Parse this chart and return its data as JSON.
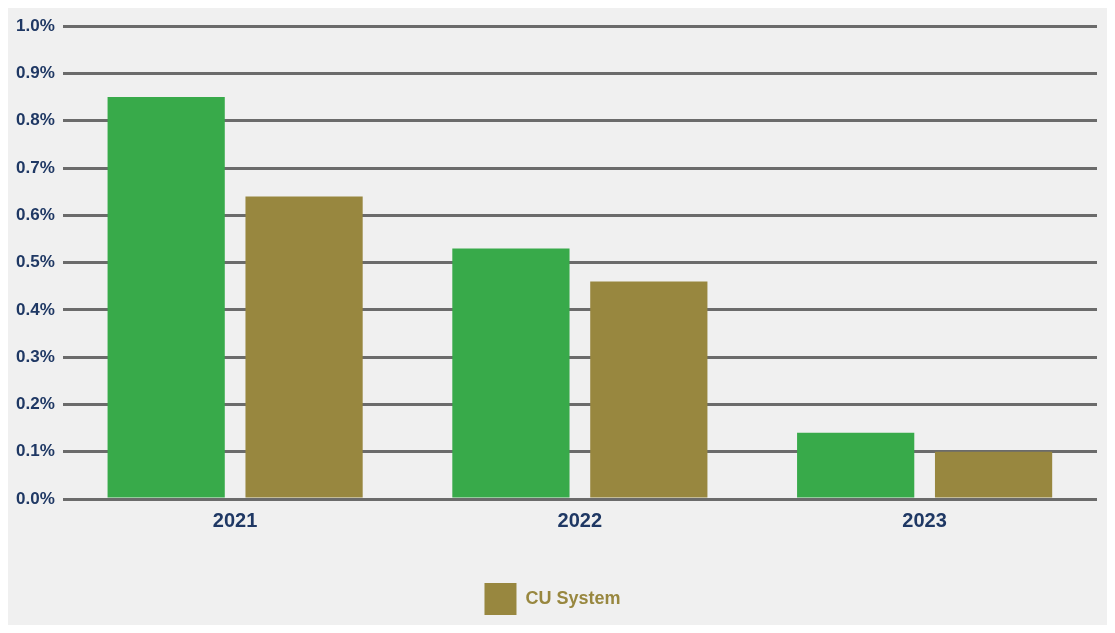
{
  "chart_data": {
    "type": "bar",
    "categories": [
      "2021",
      "2022",
      "2023"
    ],
    "series": [
      {
        "color": "#38aa4a",
        "values": [
          0.85,
          0.53,
          0.14
        ]
      },
      {
        "name": "CU System",
        "color": "#98873f",
        "values": [
          0.64,
          0.46,
          0.1
        ]
      }
    ],
    "ylim": [
      0,
      1
    ],
    "yticks": [
      {
        "value": 0,
        "label": "0.0%"
      },
      {
        "value": 0.1,
        "label": "0.1%"
      },
      {
        "value": 0.2,
        "label": "0.2%"
      },
      {
        "value": 0.3,
        "label": "0.3%"
      },
      {
        "value": 0.4,
        "label": "0.4%"
      },
      {
        "value": 0.5,
        "label": "0.5%"
      },
      {
        "value": 0.6,
        "label": "0.6%"
      },
      {
        "value": 0.7,
        "label": "0.7%"
      },
      {
        "value": 0.8,
        "label": "0.8%"
      },
      {
        "value": 0.9,
        "label": "0.9%"
      },
      {
        "value": 1,
        "label": "1.0%"
      }
    ],
    "grid": "y",
    "legend": "bottom"
  }
}
